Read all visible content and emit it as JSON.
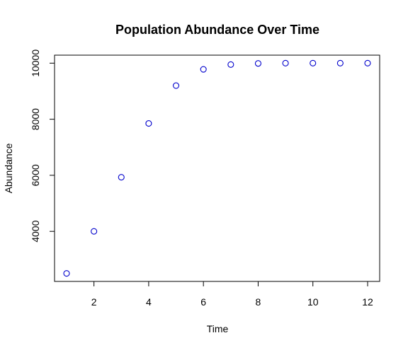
{
  "chart_data": {
    "type": "scatter",
    "title": "Population Abundance Over Time",
    "xlabel": "Time",
    "ylabel": "Abundance",
    "xlim": [
      0.56,
      12.44
    ],
    "ylim": [
      2214,
      10286
    ],
    "x_ticks": [
      2,
      4,
      6,
      8,
      10,
      12
    ],
    "y_ticks": [
      4000,
      6000,
      8000,
      10000
    ],
    "grid": false,
    "legend": "none",
    "marker": "open-circle",
    "point_color": "#0000cc",
    "x": [
      1,
      2,
      3,
      4,
      5,
      6,
      7,
      8,
      9,
      10,
      11,
      12
    ],
    "y": [
      2500,
      4000,
      5930,
      7850,
      9200,
      9780,
      9950,
      9990,
      10000,
      10000,
      10000,
      10000
    ]
  }
}
